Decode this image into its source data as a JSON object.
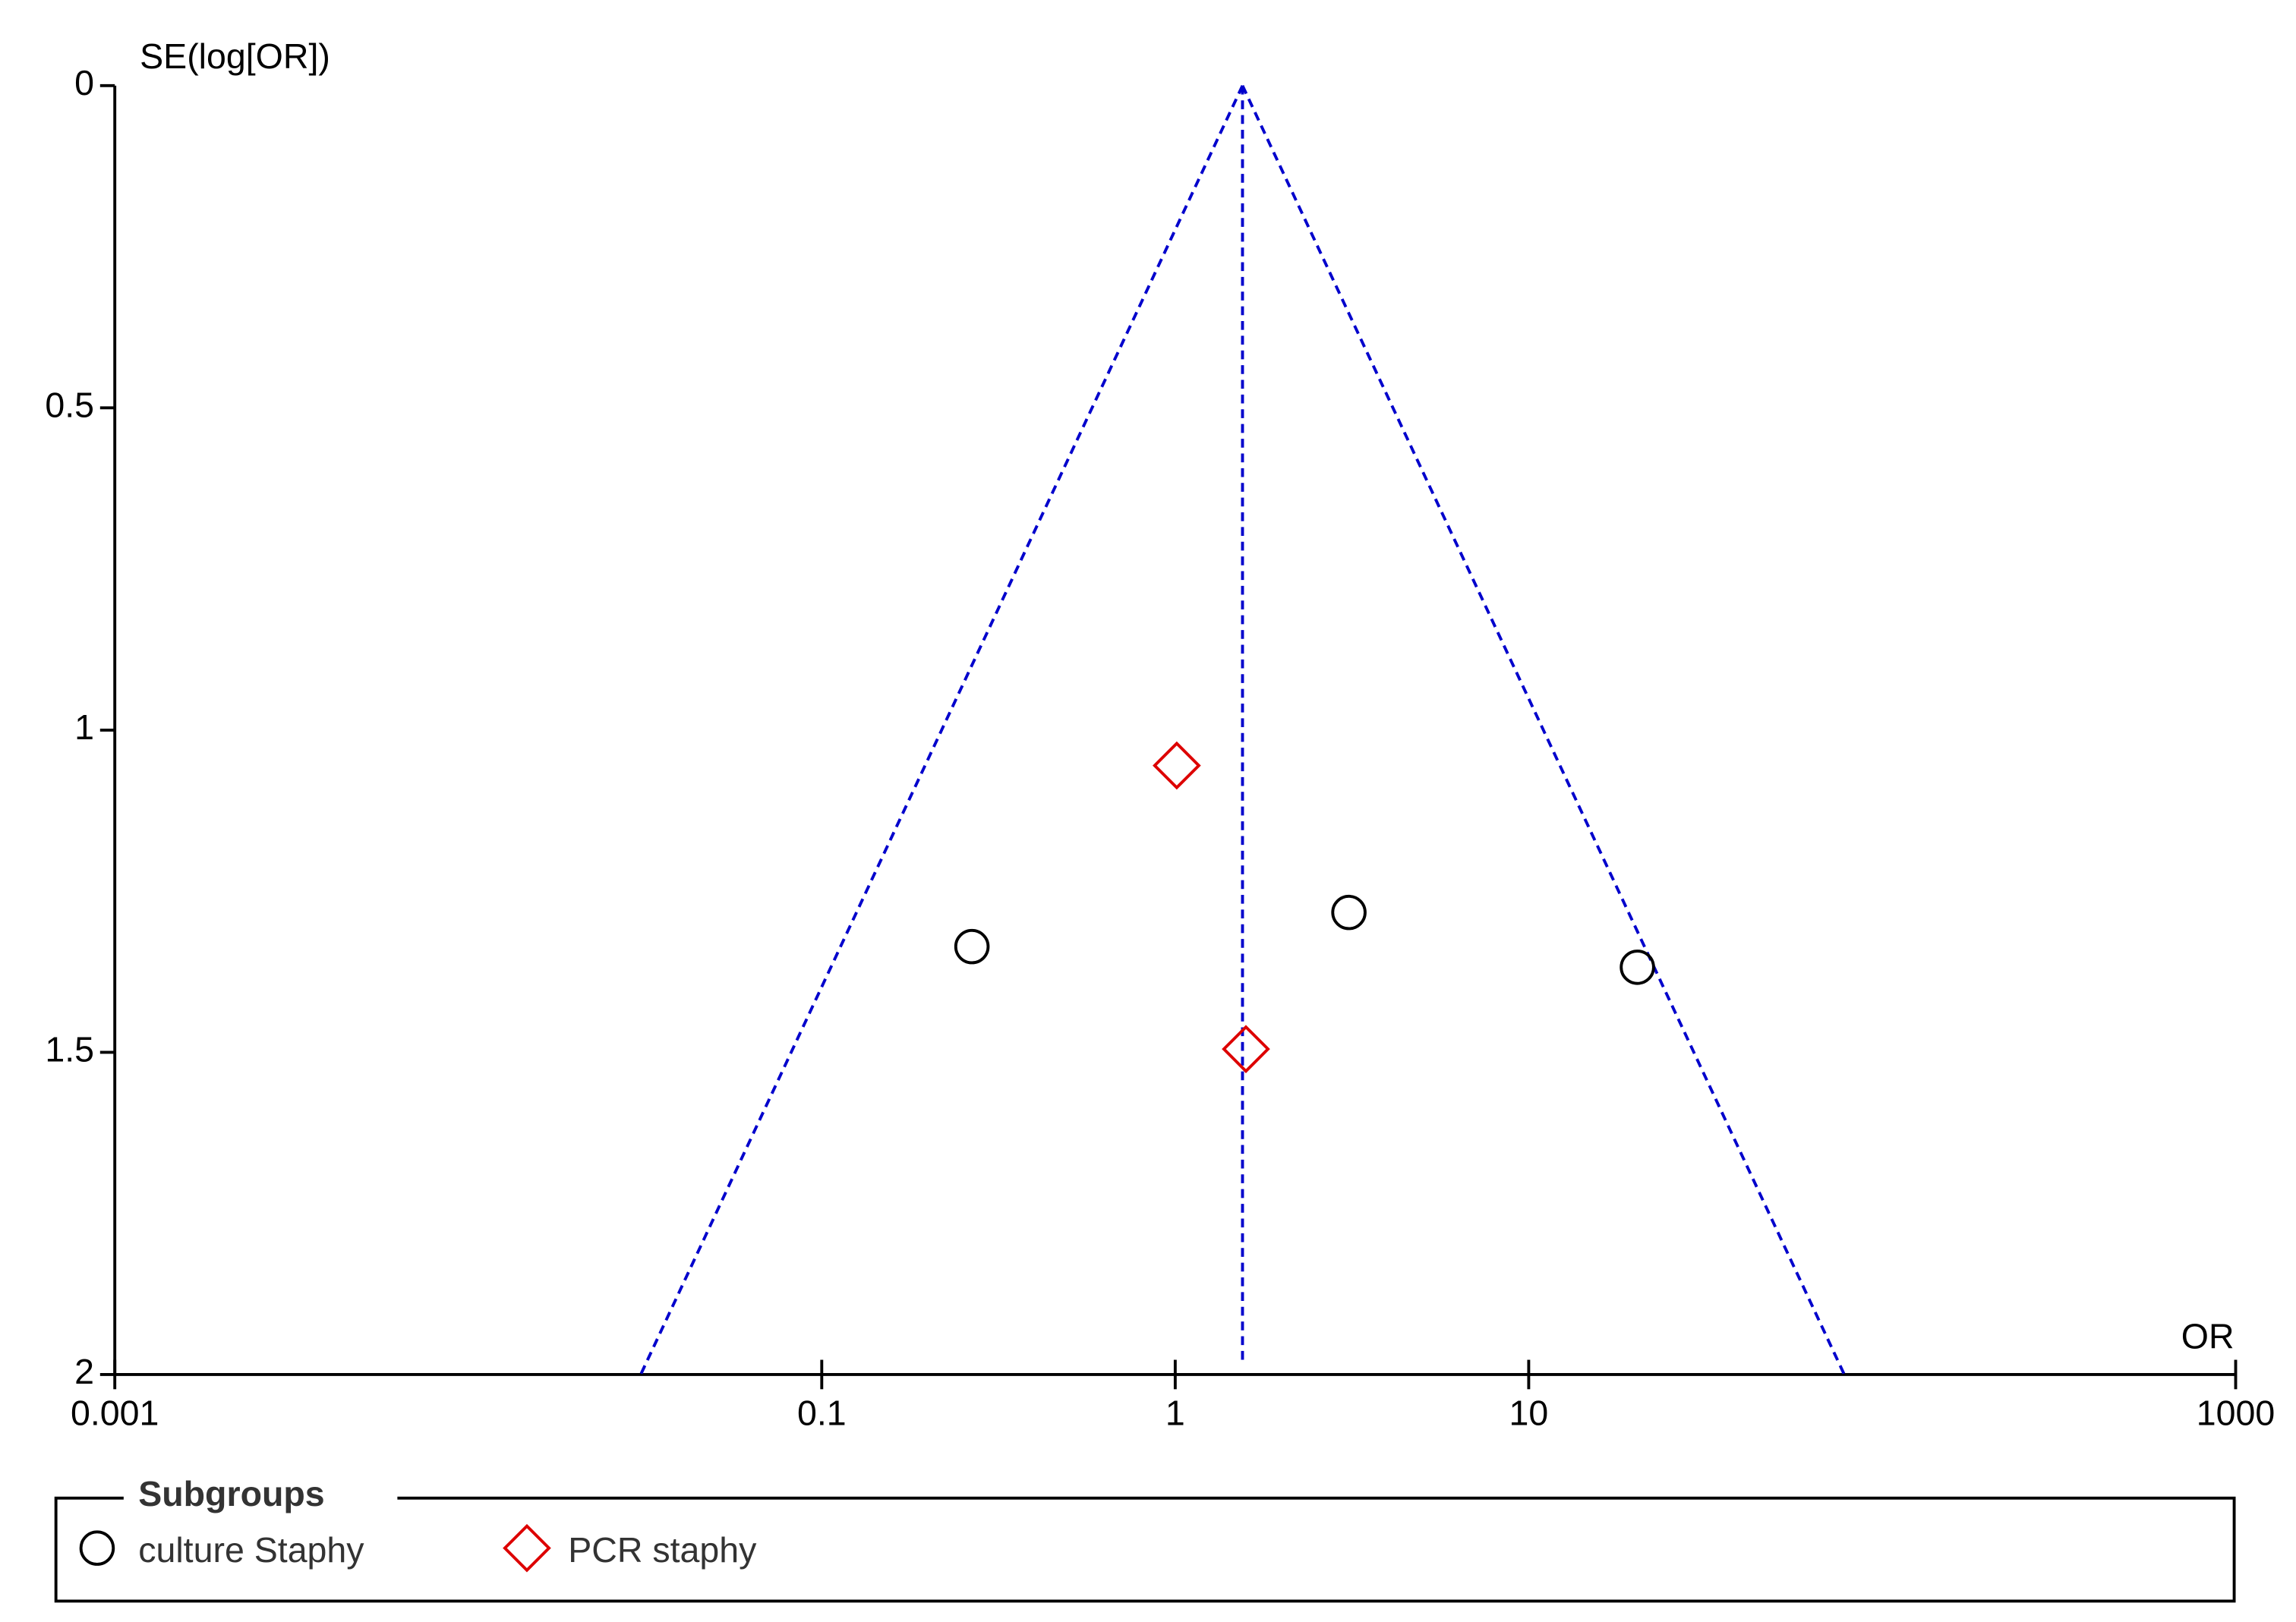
{
  "chart_data": {
    "type": "funnel",
    "y_label": "SE(log[OR])",
    "x_label": "OR",
    "x_log": true,
    "y_reversed": true,
    "xlim": [
      0.001,
      1000
    ],
    "xticks": [
      0.001,
      0.1,
      1,
      10,
      1000
    ],
    "ylim": [
      0,
      2
    ],
    "yticks": [
      0,
      0.5,
      1,
      1.5,
      2
    ],
    "pooled_or": 1.55,
    "confidence_z": 1.96,
    "funnel_color": "#0000cc",
    "legend_title": "Subgroups",
    "series": [
      {
        "name": "culture Staphy",
        "color": "#000000",
        "marker": "circle",
        "x": [
          0.266,
          3.1,
          20.3
        ],
        "values": [
          1.336,
          1.283,
          1.368
        ]
      },
      {
        "name": "PCR staphy",
        "color": "#dd0000",
        "marker": "diamond",
        "x": [
          1.01,
          1.585
        ],
        "values": [
          1.055,
          1.495
        ]
      }
    ]
  }
}
